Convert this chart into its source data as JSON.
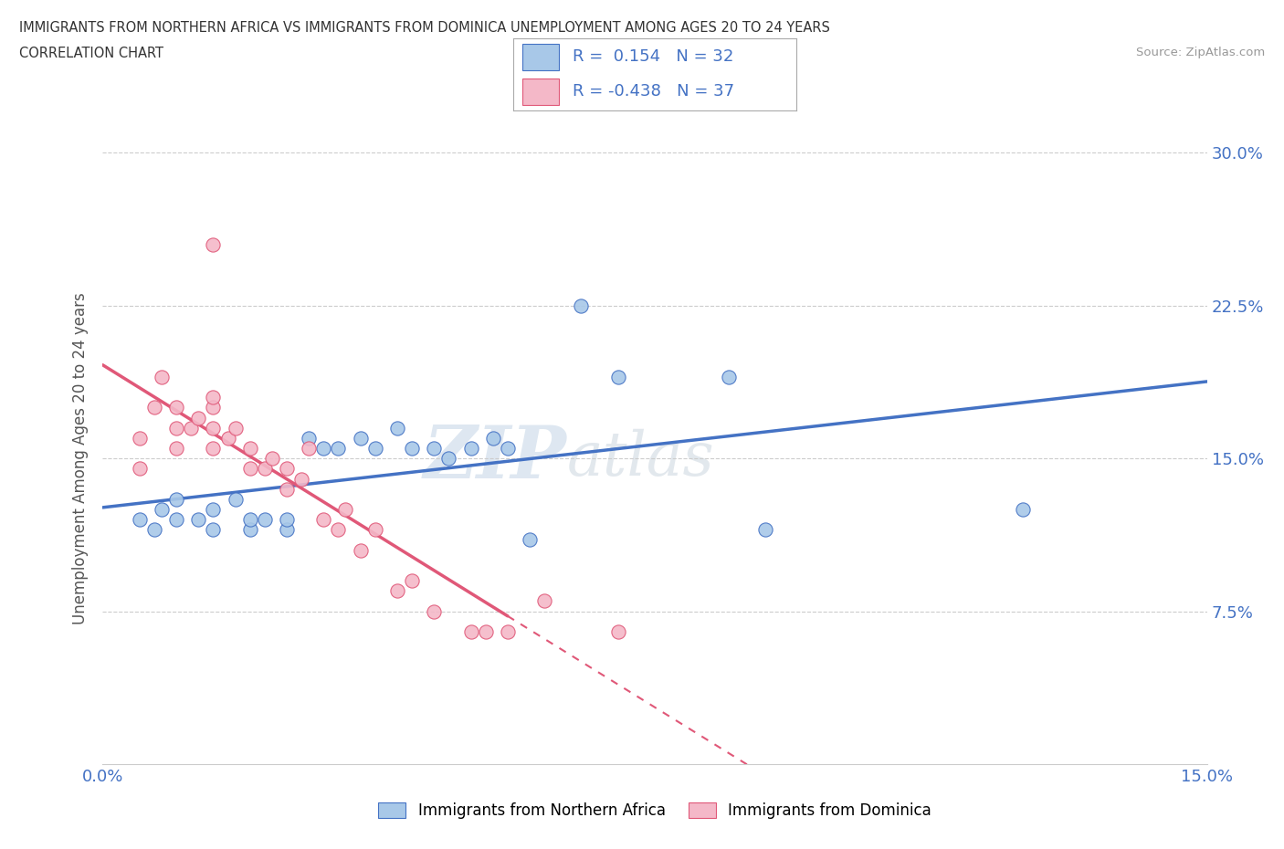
{
  "title_line1": "IMMIGRANTS FROM NORTHERN AFRICA VS IMMIGRANTS FROM DOMINICA UNEMPLOYMENT AMONG AGES 20 TO 24 YEARS",
  "title_line2": "CORRELATION CHART",
  "source_text": "Source: ZipAtlas.com",
  "ylabel": "Unemployment Among Ages 20 to 24 years",
  "xlim": [
    0.0,
    0.15
  ],
  "ylim": [
    0.0,
    0.3
  ],
  "xticks": [
    0.0,
    0.025,
    0.05,
    0.075,
    0.1,
    0.125,
    0.15
  ],
  "xtick_labels": [
    "0.0%",
    "",
    "",
    "",
    "",
    "",
    "15.0%"
  ],
  "ytick_labels_right": [
    "",
    "7.5%",
    "15.0%",
    "22.5%",
    "30.0%"
  ],
  "yticks": [
    0.0,
    0.075,
    0.15,
    0.225,
    0.3
  ],
  "color_blue": "#a8c8e8",
  "color_pink": "#f4b8c8",
  "blue_line_color": "#4472c4",
  "pink_line_color": "#e05878",
  "R_blue": 0.154,
  "N_blue": 32,
  "R_pink": -0.438,
  "N_pink": 37,
  "legend_label_blue": "Immigrants from Northern Africa",
  "legend_label_pink": "Immigrants from Dominica",
  "watermark_zip": "ZIP",
  "watermark_atlas": "atlas",
  "blue_scatter_x": [
    0.005,
    0.007,
    0.008,
    0.01,
    0.01,
    0.013,
    0.015,
    0.015,
    0.018,
    0.02,
    0.02,
    0.022,
    0.025,
    0.025,
    0.028,
    0.03,
    0.032,
    0.035,
    0.037,
    0.04,
    0.042,
    0.045,
    0.047,
    0.05,
    0.053,
    0.055,
    0.058,
    0.065,
    0.07,
    0.085,
    0.09,
    0.125
  ],
  "blue_scatter_y": [
    0.12,
    0.115,
    0.125,
    0.12,
    0.13,
    0.12,
    0.125,
    0.115,
    0.13,
    0.115,
    0.12,
    0.12,
    0.115,
    0.12,
    0.16,
    0.155,
    0.155,
    0.16,
    0.155,
    0.165,
    0.155,
    0.155,
    0.15,
    0.155,
    0.16,
    0.155,
    0.11,
    0.225,
    0.19,
    0.19,
    0.115,
    0.125
  ],
  "pink_scatter_x": [
    0.005,
    0.005,
    0.007,
    0.008,
    0.01,
    0.01,
    0.01,
    0.012,
    0.013,
    0.015,
    0.015,
    0.015,
    0.015,
    0.015,
    0.017,
    0.018,
    0.02,
    0.02,
    0.022,
    0.023,
    0.025,
    0.025,
    0.027,
    0.028,
    0.03,
    0.032,
    0.033,
    0.035,
    0.037,
    0.04,
    0.042,
    0.045,
    0.05,
    0.052,
    0.055,
    0.06,
    0.07
  ],
  "pink_scatter_y": [
    0.145,
    0.16,
    0.175,
    0.19,
    0.155,
    0.165,
    0.175,
    0.165,
    0.17,
    0.155,
    0.165,
    0.175,
    0.18,
    0.255,
    0.16,
    0.165,
    0.145,
    0.155,
    0.145,
    0.15,
    0.135,
    0.145,
    0.14,
    0.155,
    0.12,
    0.115,
    0.125,
    0.105,
    0.115,
    0.085,
    0.09,
    0.075,
    0.065,
    0.065,
    0.065,
    0.08,
    0.065
  ]
}
